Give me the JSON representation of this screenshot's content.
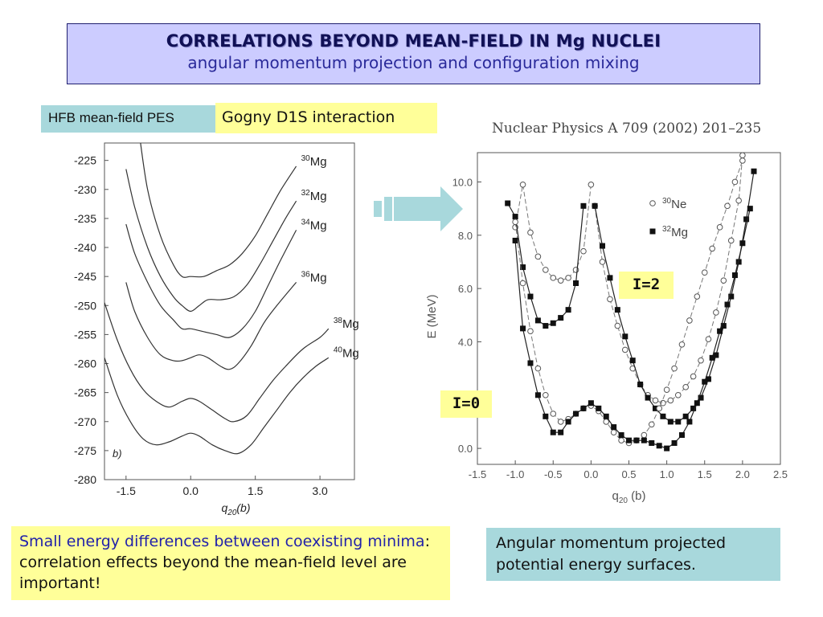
{
  "title": {
    "main": "CORRELATIONS BEYOND MEAN-FIELD IN Mg NUCLEI",
    "sub": "angular momentum projection and configuration mixing"
  },
  "tags": {
    "hfb": "HFB mean-field PES",
    "gogny": "Gogny D1S interaction"
  },
  "reference": "Nuclear Physics A 709 (2002) 201–235",
  "labels": {
    "i2": "I=2",
    "i0": "I=0"
  },
  "notes": {
    "left_blue": "Small energy differences between coexisting minima",
    "left_rest": ": correlation effects beyond the mean-field level are important!",
    "right": "Angular momentum projected potential energy surfaces."
  },
  "colors": {
    "title_bg": "#ccccff",
    "yellow": "#ffff99",
    "teal": "#a8d8dc",
    "arrow": "#e8f070",
    "arrow_teal": "#a8d8dc"
  },
  "chart_data": [
    {
      "type": "line",
      "panel_label": "b)",
      "xlabel": "q20(b)",
      "xlim": [
        -2.0,
        3.8
      ],
      "ylim": [
        -280,
        -222
      ],
      "xticks": [
        "-1.5",
        "0.0",
        "1.5",
        "3.0"
      ],
      "yticks": [
        "-225",
        "-230",
        "-235",
        "-240",
        "-245",
        "-250",
        "-255",
        "-260",
        "-265",
        "-270",
        "-275",
        "-280"
      ],
      "series": [
        {
          "name": "30Mg",
          "x": [
            -1.2,
            -1.0,
            -0.7,
            -0.4,
            -0.2,
            0.0,
            0.3,
            0.6,
            0.9,
            1.2,
            1.5,
            1.8,
            2.1,
            2.45
          ],
          "y": [
            -220,
            -230,
            -238,
            -243,
            -245,
            -245,
            -245,
            -244,
            -243,
            -241,
            -238,
            -234,
            -230,
            -226
          ]
        },
        {
          "name": "32Mg",
          "x": [
            -1.5,
            -1.3,
            -1.0,
            -0.7,
            -0.4,
            -0.2,
            0.0,
            0.2,
            0.4,
            0.7,
            1.0,
            1.3,
            1.6,
            1.9,
            2.2,
            2.45
          ],
          "y": [
            -226.5,
            -233,
            -240,
            -245,
            -248.5,
            -250,
            -251,
            -250,
            -249,
            -249,
            -248.5,
            -246.5,
            -243,
            -239,
            -235,
            -232
          ]
        },
        {
          "name": "34Mg",
          "x": [
            -1.5,
            -1.3,
            -1.0,
            -0.7,
            -0.4,
            -0.2,
            0.0,
            0.3,
            0.6,
            0.9,
            1.2,
            1.5,
            1.8,
            2.1,
            2.45
          ],
          "y": [
            -236,
            -241,
            -246,
            -250,
            -252.5,
            -254,
            -254,
            -254.5,
            -255,
            -255.5,
            -254,
            -251,
            -246.5,
            -242,
            -237
          ]
        },
        {
          "name": "36Mg",
          "x": [
            -1.5,
            -1.3,
            -1.0,
            -0.7,
            -0.4,
            -0.2,
            0.0,
            0.2,
            0.4,
            0.7,
            0.9,
            1.1,
            1.4,
            1.7,
            2.0,
            2.45
          ],
          "y": [
            -246,
            -251,
            -255.5,
            -258.5,
            -259.5,
            -259.5,
            -259,
            -258.5,
            -259,
            -260.5,
            -261,
            -260,
            -257,
            -253,
            -250,
            -246
          ]
        },
        {
          "name": "38Mg",
          "x": [
            -2.0,
            -1.7,
            -1.4,
            -1.1,
            -0.8,
            -0.5,
            -0.2,
            0.0,
            0.2,
            0.5,
            0.8,
            1.0,
            1.3,
            1.6,
            1.9,
            2.2,
            2.6,
            3.0,
            3.2
          ],
          "y": [
            -249.5,
            -256,
            -261,
            -264.5,
            -266.5,
            -267.5,
            -266.5,
            -266,
            -266.5,
            -268,
            -269.5,
            -270,
            -269,
            -266,
            -263,
            -260.5,
            -257.5,
            -255.5,
            -254
          ]
        },
        {
          "name": "40Mg",
          "x": [
            -2.0,
            -1.7,
            -1.4,
            -1.1,
            -0.8,
            -0.5,
            -0.2,
            0.0,
            0.2,
            0.5,
            0.8,
            1.1,
            1.4,
            1.7,
            2.0,
            2.3,
            2.6,
            2.9,
            3.2
          ],
          "y": [
            -259,
            -265.5,
            -270,
            -273,
            -274,
            -273.5,
            -272.5,
            -272,
            -272.5,
            -274,
            -275,
            -275.5,
            -274,
            -271,
            -268,
            -265,
            -262.5,
            -260.5,
            -259
          ]
        }
      ]
    },
    {
      "type": "scatter",
      "xlabel": "q20 (b)",
      "ylabel": "E (MeV)",
      "xlim": [
        -1.5,
        2.5
      ],
      "ylim": [
        -0.6,
        11.1
      ],
      "xticks": [
        "-1.5",
        "-1.0",
        "-0.5",
        "0.0",
        "0.5",
        "1.0",
        "1.5",
        "2.0",
        "2.5"
      ],
      "yticks": [
        "0.0",
        "2.0",
        "4.0",
        "6.0",
        "8.0",
        "10.0"
      ],
      "legend_placement": "top-right",
      "series": [
        {
          "name": "30Ne",
          "marker": "open-circle",
          "level": "I=2",
          "x": [
            -1.0,
            -0.9,
            -0.8,
            -0.7,
            -0.6,
            -0.5,
            -0.4,
            -0.3,
            -0.2,
            -0.1,
            0.0
          ],
          "y": [
            8.3,
            9.9,
            8.1,
            7.2,
            6.7,
            6.4,
            6.3,
            6.4,
            6.7,
            7.4,
            9.9
          ]
        },
        {
          "name": "30Ne",
          "marker": "open-circle",
          "level": "I=2",
          "x": [
            0.05,
            0.15,
            0.25,
            0.35,
            0.45,
            0.55,
            0.65,
            0.75,
            0.85,
            0.95,
            1.05,
            1.15,
            1.25,
            1.35,
            1.45,
            1.55,
            1.65,
            1.75,
            1.85,
            1.95,
            2.0
          ],
          "y": [
            9.1,
            7.0,
            5.6,
            4.6,
            3.7,
            3.0,
            2.4,
            2.0,
            1.8,
            1.7,
            1.8,
            2.0,
            2.3,
            2.7,
            3.3,
            4.1,
            5.1,
            6.3,
            7.8,
            9.3,
            11.0
          ]
        },
        {
          "name": "32Mg",
          "marker": "filled-square",
          "level": "I=2",
          "x": [
            -1.1,
            -1.0,
            -0.9,
            -0.8,
            -0.7,
            -0.6,
            -0.5,
            -0.4,
            -0.3,
            -0.2,
            -0.1
          ],
          "y": [
            9.2,
            8.7,
            6.8,
            5.7,
            4.8,
            4.6,
            4.7,
            4.9,
            5.2,
            6.2,
            9.1
          ]
        },
        {
          "name": "32Mg",
          "marker": "filled-square",
          "level": "I=2",
          "x": [
            0.05,
            0.15,
            0.25,
            0.35,
            0.45,
            0.55,
            0.65,
            0.75,
            0.85,
            0.95,
            1.05,
            1.15,
            1.25,
            1.35,
            1.45,
            1.55,
            1.65,
            1.75,
            1.85,
            1.95,
            2.05,
            2.15
          ],
          "y": [
            9.1,
            7.6,
            6.4,
            5.2,
            4.2,
            3.3,
            2.4,
            1.9,
            1.5,
            1.2,
            1.0,
            1.0,
            1.2,
            1.5,
            1.9,
            2.6,
            3.5,
            4.6,
            5.7,
            7.0,
            8.6,
            10.4
          ]
        },
        {
          "name": "30Ne",
          "marker": "open-circle",
          "level": "I=0",
          "x": [
            -1.0,
            -0.9,
            -0.8,
            -0.7,
            -0.6,
            -0.5,
            -0.4,
            -0.3,
            -0.2,
            -0.1,
            0.0,
            0.1,
            0.2,
            0.3,
            0.4,
            0.5,
            0.6,
            0.7,
            0.8,
            0.9,
            1.0,
            1.1,
            1.2,
            1.3,
            1.4,
            1.5,
            1.6,
            1.7,
            1.8,
            1.9,
            2.0
          ],
          "y": [
            8.5,
            6.2,
            4.4,
            3.0,
            2.0,
            1.3,
            1.0,
            1.1,
            1.3,
            1.5,
            1.6,
            1.4,
            1.0,
            0.6,
            0.3,
            0.2,
            0.3,
            0.5,
            0.9,
            1.5,
            2.2,
            3.0,
            3.9,
            4.8,
            5.7,
            6.6,
            7.5,
            8.3,
            9.1,
            10.0,
            10.8
          ]
        },
        {
          "name": "32Mg",
          "marker": "filled-square",
          "level": "I=0",
          "x": [
            -1.0,
            -0.9,
            -0.8,
            -0.7,
            -0.6,
            -0.5,
            -0.4,
            -0.3,
            -0.2,
            -0.1,
            0.0,
            0.1,
            0.2,
            0.3,
            0.4,
            0.5,
            0.6,
            0.7,
            0.8,
            0.9,
            1.0,
            1.1,
            1.2,
            1.3,
            1.4,
            1.5,
            1.6,
            1.7,
            1.8,
            1.9,
            2.0,
            2.1
          ],
          "y": [
            7.8,
            4.5,
            3.2,
            2.0,
            1.2,
            0.6,
            0.6,
            1.0,
            1.3,
            1.5,
            1.7,
            1.5,
            1.2,
            0.8,
            0.5,
            0.3,
            0.3,
            0.3,
            0.2,
            0.1,
            0.0,
            0.2,
            0.5,
            1.0,
            1.7,
            2.5,
            3.4,
            4.4,
            5.4,
            6.5,
            7.7,
            9.0
          ]
        }
      ]
    }
  ]
}
